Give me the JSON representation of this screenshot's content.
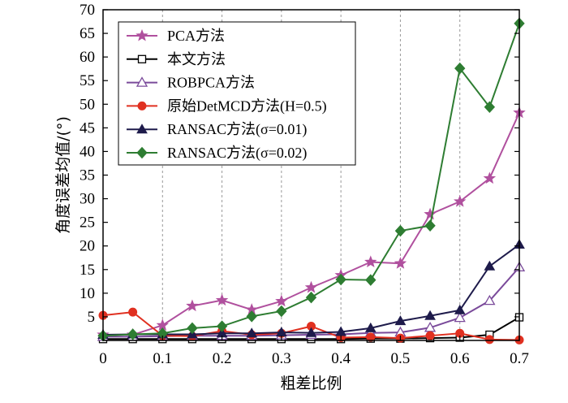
{
  "chart_data": {
    "type": "line",
    "title": "",
    "xlabel": "粗差比例",
    "ylabel": "角度误差均值/(°)",
    "xlim": [
      0,
      0.7
    ],
    "ylim": [
      0,
      70
    ],
    "xticks": [
      0,
      0.1,
      0.2,
      0.3,
      0.4,
      0.5,
      0.6,
      0.7
    ],
    "xtick_labels": [
      "0",
      "0.1",
      "0.2",
      "0.3",
      "0.4",
      "0.5",
      "0.6",
      "0.7"
    ],
    "yticks": [
      5,
      10,
      15,
      20,
      25,
      30,
      35,
      40,
      45,
      50,
      55,
      60,
      65,
      70
    ],
    "ytick_labels": [
      "5",
      "10",
      "15",
      "20",
      "25",
      "30",
      "35",
      "40",
      "45",
      "50",
      "55",
      "60",
      "65",
      "70"
    ],
    "grid": "x-dashed",
    "legend_position": "top-left",
    "x": [
      0,
      0.05,
      0.1,
      0.15,
      0.2,
      0.25,
      0.3,
      0.35,
      0.4,
      0.45,
      0.5,
      0.55,
      0.6,
      0.65,
      0.7
    ],
    "series": [
      {
        "name": "PCA方法",
        "color": "#b0509e",
        "marker": "star",
        "values": [
          1.2,
          1.2,
          3.2,
          7.3,
          8.5,
          6.5,
          8.3,
          11.2,
          13.8,
          16.6,
          16.3,
          26.7,
          29.4,
          34.3,
          48.2
        ]
      },
      {
        "name": "本文方法",
        "color": "#000000",
        "marker": "open-square",
        "values": [
          0.3,
          0.3,
          0.3,
          0.3,
          0.3,
          0.3,
          0.3,
          0.3,
          0.3,
          0.4,
          0.4,
          0.5,
          0.6,
          1.2,
          4.9
        ]
      },
      {
        "name": "ROBPCA方法",
        "color": "#7a4a9a",
        "marker": "open-triangle",
        "values": [
          0.8,
          0.8,
          0.9,
          1.0,
          1.0,
          1.0,
          1.1,
          1.2,
          1.3,
          1.6,
          1.7,
          2.7,
          4.8,
          8.4,
          15.5
        ]
      },
      {
        "name": "原始DetMCD方法(H=0.5)",
        "color": "#e03020",
        "marker": "circle",
        "values": [
          5.3,
          6.0,
          1.0,
          0.9,
          2.0,
          1.2,
          1.5,
          3.0,
          0.6,
          0.7,
          0.5,
          1.0,
          1.5,
          0.2,
          0.1
        ]
      },
      {
        "name": "RANSAC方法(σ=0.01)",
        "color": "#1e1b4b",
        "marker": "triangle",
        "values": [
          1.2,
          1.3,
          1.3,
          1.3,
          1.5,
          1.5,
          1.7,
          1.6,
          1.8,
          2.6,
          4.1,
          5.2,
          6.4,
          15.7,
          20.3
        ]
      },
      {
        "name": "RANSAC方法(σ=0.02)",
        "color": "#2e7d32",
        "marker": "diamond",
        "values": [
          1.0,
          1.3,
          1.5,
          2.6,
          3.0,
          5.1,
          6.2,
          9.1,
          12.9,
          12.8,
          23.2,
          24.3,
          57.6,
          49.4,
          67.1
        ]
      }
    ]
  }
}
